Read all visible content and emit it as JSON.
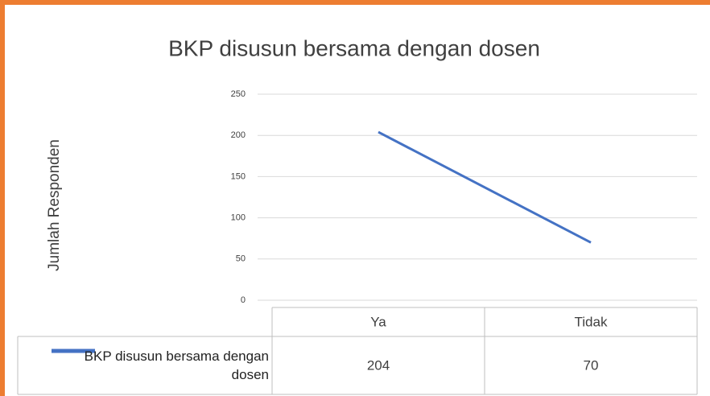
{
  "chart_data": {
    "type": "line",
    "title": "BKP disusun bersama dengan dosen",
    "y_label": "Jumlah Responden",
    "categories": [
      "Ya",
      "Tidak"
    ],
    "series": [
      {
        "name": "BKP disusun bersama dengan dosen",
        "color": "#4472c4",
        "values": [
          204,
          70
        ]
      }
    ],
    "ylim": [
      0,
      250
    ],
    "yticks": [
      0,
      50,
      100,
      150,
      200,
      250
    ],
    "grid": true,
    "data_table": true
  }
}
